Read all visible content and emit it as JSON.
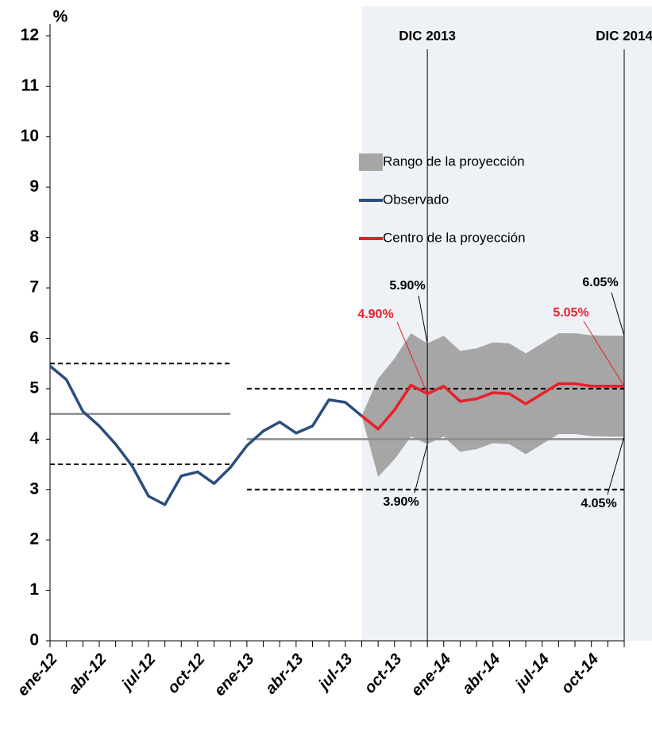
{
  "chart_data": {
    "type": "line",
    "y_label": "%",
    "categories": [
      "ene-12",
      null,
      null,
      "abr-12",
      null,
      null,
      "jul-12",
      null,
      null,
      "oct-12",
      null,
      null,
      "ene-13",
      null,
      null,
      "abr-13",
      null,
      null,
      "jul-13",
      null,
      null,
      "oct-13",
      null,
      null,
      "ene-14",
      null,
      null,
      "abr-14",
      null,
      null,
      "jul-14",
      null,
      null,
      "oct-14",
      null,
      null
    ],
    "ylim": [
      0,
      12
    ],
    "yticks": [
      0,
      1,
      2,
      3,
      4,
      5,
      6,
      7,
      8,
      9,
      10,
      11,
      12
    ],
    "band": {
      "name": "Rango de la proyección",
      "color": "#a6a6a6",
      "upper": [
        null,
        null,
        null,
        null,
        null,
        null,
        null,
        null,
        null,
        null,
        null,
        null,
        null,
        null,
        null,
        null,
        null,
        null,
        null,
        4.46,
        5.2,
        5.6,
        6.1,
        5.9,
        6.05,
        5.75,
        5.8,
        5.92,
        5.9,
        5.7,
        5.9,
        6.1,
        6.1,
        6.06,
        6.05,
        6.05
      ],
      "lower": [
        null,
        null,
        null,
        null,
        null,
        null,
        null,
        null,
        null,
        null,
        null,
        null,
        null,
        null,
        null,
        null,
        null,
        null,
        null,
        4.46,
        3.25,
        3.6,
        4.05,
        3.9,
        4.05,
        3.75,
        3.8,
        3.92,
        3.9,
        3.7,
        3.9,
        4.1,
        4.1,
        4.06,
        4.05,
        4.05
      ]
    },
    "series": [
      {
        "name": "Observado",
        "color": "#2b4d7e",
        "values": [
          5.45,
          5.18,
          4.55,
          4.26,
          3.9,
          3.47,
          2.87,
          2.7,
          3.27,
          3.35,
          3.12,
          3.44,
          3.87,
          4.16,
          4.34,
          4.12,
          4.26,
          4.78,
          4.73,
          4.46,
          null,
          null,
          null,
          null,
          null,
          null,
          null,
          null,
          null,
          null,
          null,
          null,
          null,
          null,
          null,
          null
        ]
      },
      {
        "name": "Centro de la proyección",
        "color": "#e8202a",
        "values": [
          null,
          null,
          null,
          null,
          null,
          null,
          null,
          null,
          null,
          null,
          null,
          null,
          null,
          null,
          null,
          null,
          null,
          null,
          null,
          4.46,
          4.2,
          4.58,
          5.07,
          4.9,
          5.05,
          4.75,
          4.8,
          4.92,
          4.9,
          4.7,
          4.9,
          5.1,
          5.1,
          5.05,
          5.05,
          5.05
        ]
      }
    ],
    "reference_lines": [
      {
        "y": 4.5,
        "from": 0,
        "to": 11,
        "style": "solid"
      },
      {
        "y": 5.5,
        "from": 0,
        "to": 11,
        "style": "dashed"
      },
      {
        "y": 3.5,
        "from": 0,
        "to": 11,
        "style": "dashed"
      },
      {
        "y": 4.0,
        "from": 12,
        "to": 35,
        "style": "solid"
      },
      {
        "y": 5.0,
        "from": 12,
        "to": 35,
        "style": "dashed"
      },
      {
        "y": 3.0,
        "from": 12,
        "to": 35,
        "style": "dashed"
      }
    ],
    "shaded_from": 19,
    "markers": [
      {
        "label": "DIC 2013",
        "at": 23
      },
      {
        "label": "DIC 2014",
        "at": 35
      }
    ],
    "annotations": [
      {
        "text": "5.90%",
        "value": 5.9,
        "at": 23,
        "color": "#000000"
      },
      {
        "text": "3.90%",
        "value": 3.9,
        "at": 23,
        "color": "#000000"
      },
      {
        "text": "4.90%",
        "value": 4.9,
        "at": 23,
        "color": "#e8202a"
      },
      {
        "text": "6.05%",
        "value": 6.05,
        "at": 35,
        "color": "#000000"
      },
      {
        "text": "5.05%",
        "value": 5.05,
        "at": 35,
        "color": "#e8202a"
      },
      {
        "text": "4.05%",
        "value": 4.05,
        "at": 35,
        "color": "#000000"
      }
    ]
  }
}
